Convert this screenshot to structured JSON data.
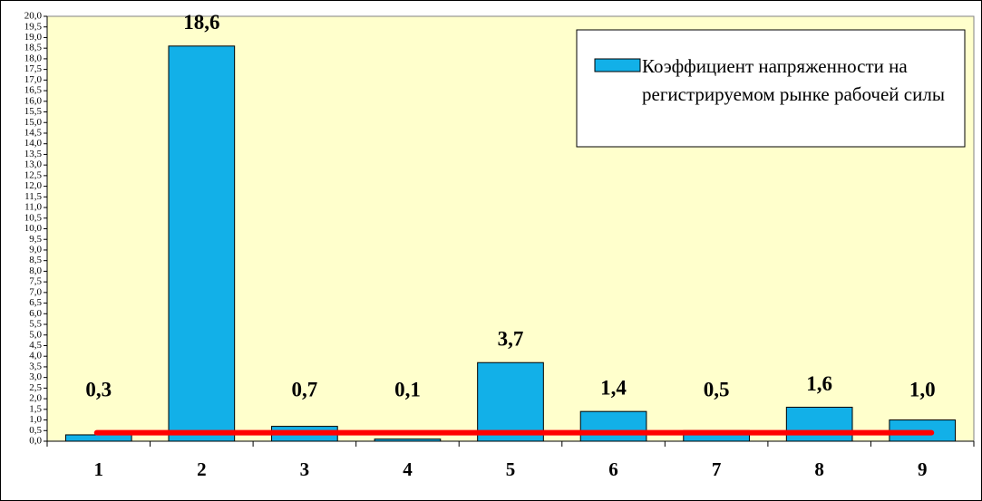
{
  "chart_data": {
    "type": "bar",
    "categories": [
      "1",
      "2",
      "3",
      "4",
      "5",
      "6",
      "7",
      "8",
      "9"
    ],
    "series": [
      {
        "name": "Коэффициент напряженности на регистрируемом рынке рабочей силы",
        "color": "#12b0e8",
        "values": [
          0.3,
          18.6,
          0.7,
          0.1,
          3.7,
          1.4,
          0.5,
          1.6,
          1.0
        ],
        "value_labels": [
          "0,3",
          "18,6",
          "0,7",
          "0,1",
          "3,7",
          "1,4",
          "0,5",
          "1,6",
          "1,0"
        ]
      }
    ],
    "reference_line": {
      "value": 0.4,
      "color": "#ff0000"
    },
    "ylim": [
      0,
      20
    ],
    "yticks": [
      {
        "value": 0,
        "label": "0,0"
      },
      {
        "value": 0.5,
        "label": "0,5"
      },
      {
        "value": 1,
        "label": "1,0"
      },
      {
        "value": 1.5,
        "label": "1,5"
      },
      {
        "value": 2,
        "label": "2,0"
      },
      {
        "value": 2.5,
        "label": "2,5"
      },
      {
        "value": 3,
        "label": "3,0"
      },
      {
        "value": 3.5,
        "label": "3,5"
      },
      {
        "value": 4,
        "label": "4,0"
      },
      {
        "value": 4.5,
        "label": "4,5"
      },
      {
        "value": 5,
        "label": "5,0"
      },
      {
        "value": 5.5,
        "label": "5,5"
      },
      {
        "value": 6,
        "label": "6,0"
      },
      {
        "value": 6.5,
        "label": "6,5"
      },
      {
        "value": 7,
        "label": "7,0"
      },
      {
        "value": 7.5,
        "label": "7,5"
      },
      {
        "value": 8,
        "label": "8,0"
      },
      {
        "value": 8.5,
        "label": "8,5"
      },
      {
        "value": 9,
        "label": "9,0"
      },
      {
        "value": 9.5,
        "label": "9,5"
      },
      {
        "value": 10,
        "label": "10,0"
      },
      {
        "value": 10.5,
        "label": "10,5"
      },
      {
        "value": 11,
        "label": "11,0"
      },
      {
        "value": 11.5,
        "label": "11,5"
      },
      {
        "value": 12,
        "label": "12,0"
      },
      {
        "value": 12.5,
        "label": "12,5"
      },
      {
        "value": 13,
        "label": "13,0"
      },
      {
        "value": 13.5,
        "label": "13,5"
      },
      {
        "value": 14,
        "label": "14,0"
      },
      {
        "value": 14.5,
        "label": "14,5"
      },
      {
        "value": 15,
        "label": "15,0"
      },
      {
        "value": 15.5,
        "label": "15,5"
      },
      {
        "value": 16,
        "label": "16,0"
      },
      {
        "value": 16.5,
        "label": "16,5"
      },
      {
        "value": 17,
        "label": "17,0"
      },
      {
        "value": 17.5,
        "label": "17,5"
      },
      {
        "value": 18,
        "label": "18,0"
      },
      {
        "value": 18.5,
        "label": "18,5"
      },
      {
        "value": 19,
        "label": "19,0"
      },
      {
        "value": 19.5,
        "label": "19,5"
      },
      {
        "value": 20,
        "label": "20,0"
      }
    ],
    "legend": "top-right",
    "plot_background": "#ffffcc"
  }
}
